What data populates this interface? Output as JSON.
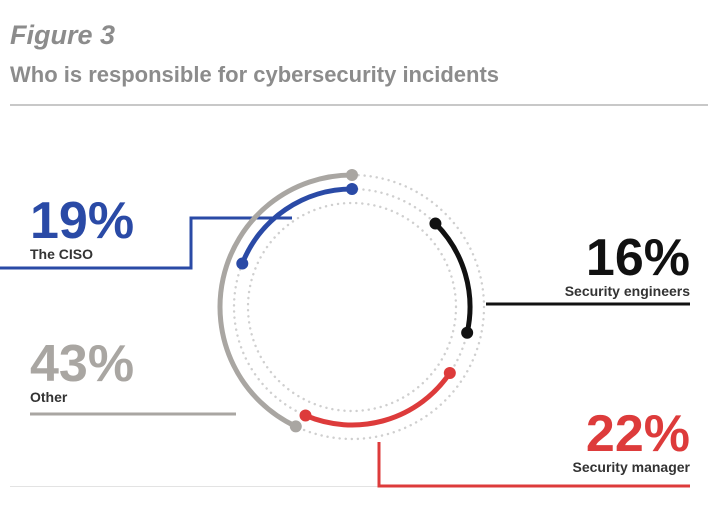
{
  "figure_label": "Figure 3",
  "title": "Who is responsible for cybersecurity incidents",
  "chart_data": {
    "type": "pie",
    "title": "Who is responsible for cybersecurity incidents",
    "series": [
      {
        "name": "The CISO",
        "value": 19,
        "value_label": "19%",
        "color": "#2a4aa6"
      },
      {
        "name": "Security engineers",
        "value": 16,
        "value_label": "16%",
        "color": "#111111"
      },
      {
        "name": "Other",
        "value": 43,
        "value_label": "43%",
        "color": "#a9a6a2"
      },
      {
        "name": "Security manager",
        "value": 22,
        "value_label": "22%",
        "color": "#dd3b3b"
      }
    ],
    "unit": "%",
    "legend": "none"
  }
}
